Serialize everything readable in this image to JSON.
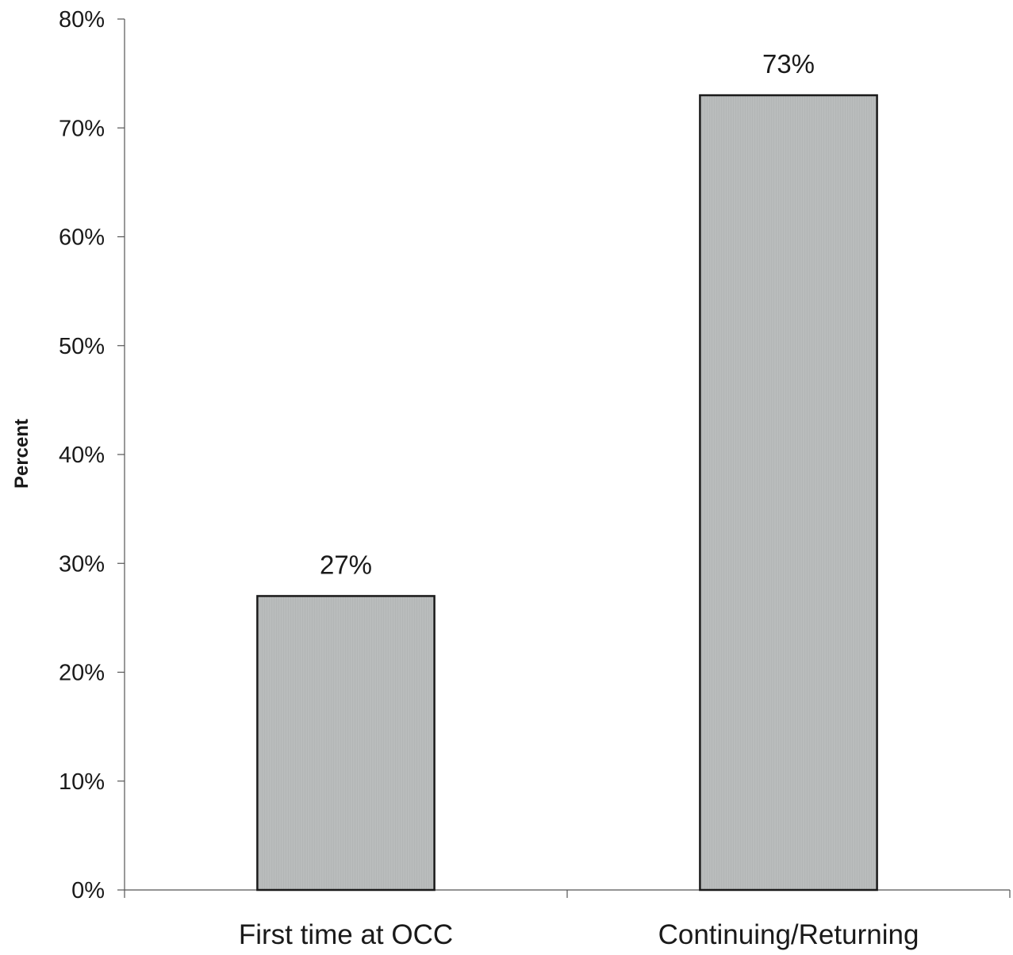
{
  "chart_data": {
    "type": "bar",
    "title": "",
    "xlabel": "",
    "ylabel": "Percent",
    "categories": [
      "First time at OCC",
      "Continuing/Returning"
    ],
    "values": [
      27,
      73
    ],
    "data_labels": [
      "27%",
      "73%"
    ],
    "ylim": [
      0,
      80
    ],
    "yticks": [
      0,
      10,
      20,
      30,
      40,
      50,
      60,
      70,
      80
    ],
    "ytick_labels": [
      "0%",
      "10%",
      "20%",
      "30%",
      "40%",
      "50%",
      "60%",
      "70%",
      "80%"
    ],
    "grid": false,
    "legend": "none",
    "bar_color": "#b9bcbc",
    "bar_edge_color": "#1a1a1a"
  }
}
